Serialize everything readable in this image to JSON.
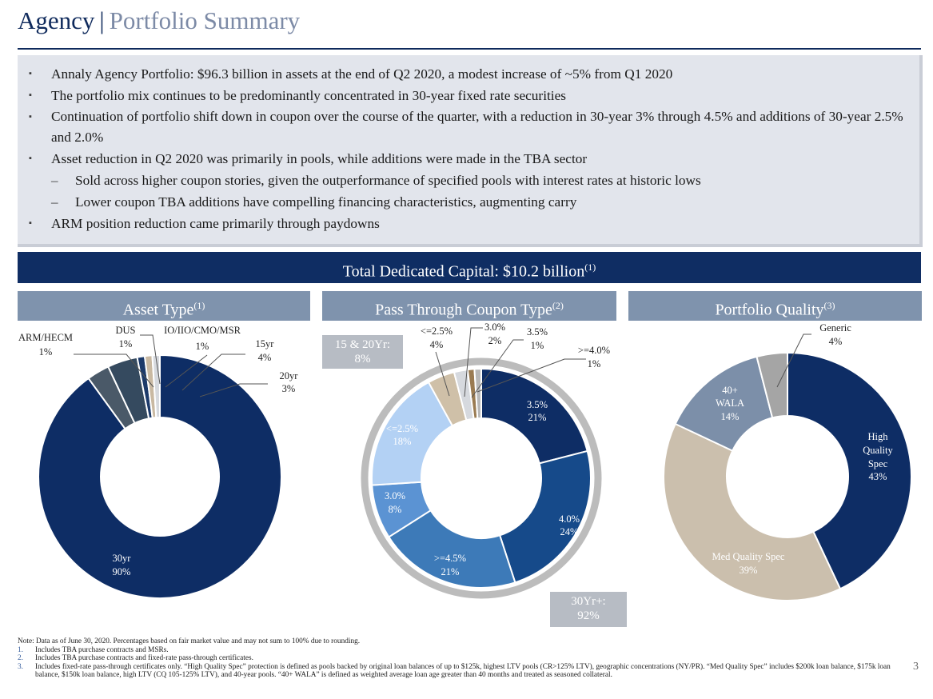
{
  "title": {
    "main": "Agency",
    "separator": "|",
    "sub": "Portfolio Summary"
  },
  "bullets": [
    {
      "level": 1,
      "text": "Annaly Agency Portfolio: $96.3 billion in assets at the end of Q2 2020, a modest increase of ~5% from Q1 2020"
    },
    {
      "level": 1,
      "text": "The portfolio mix continues to be predominantly concentrated in 30-year fixed rate securities"
    },
    {
      "level": 1,
      "text": "Continuation of portfolio shift down in coupon over the course of the quarter, with a reduction in 30-year 3% through 4.5% and additions of 30-year 2.5% and 2.0%"
    },
    {
      "level": 1,
      "text": "Asset reduction in Q2 2020 was primarily in pools, while additions were made in the TBA sector"
    },
    {
      "level": 2,
      "text": "Sold across higher coupon stories, given the outperformance of specified pools with interest rates at historic lows"
    },
    {
      "level": 2,
      "text": "Lower coupon TBA additions have compelling financing characteristics, augmenting carry"
    },
    {
      "level": 1,
      "text": "ARM position reduction came primarily through paydowns"
    }
  ],
  "bullet_markers": {
    "level1": "▪",
    "level2": "–"
  },
  "capital_banner": {
    "text": "Total Dedicated Capital: $10.2 billion",
    "sup": "(1)"
  },
  "headers": {
    "asset_type": {
      "text": "Asset Type",
      "sup": "(1)"
    },
    "coupon_type": {
      "text": "Pass Through Coupon Type",
      "sup": "(2)"
    },
    "quality": {
      "text": "Portfolio Quality",
      "sup": "(3)"
    }
  },
  "boxes": {
    "fifteen_twenty": {
      "line1": "15 & 20Yr:",
      "line2": "8%"
    },
    "thirty": {
      "line1": "30Yr+:",
      "line2": "92%"
    }
  },
  "chart_data": [
    {
      "type": "pie",
      "title": "Asset Type",
      "donut": true,
      "slices": [
        {
          "label": "30yr",
          "value": 90,
          "display": "90%",
          "color": "#0e2d65"
        },
        {
          "label": "ARM/HECM",
          "value": 1,
          "display": "1%",
          "color": "#d6d9de"
        },
        {
          "label": "DUS",
          "value": 1,
          "display": "1%",
          "color": "#c9b9a2"
        },
        {
          "label": "IO/IIO/CMO/MSR",
          "value": 1,
          "display": "1%",
          "color": "#1c3a6a"
        },
        {
          "label": "15yr",
          "value": 4,
          "display": "4%",
          "color": "#354a5f"
        },
        {
          "label": "20yr",
          "value": 3,
          "display": "3%",
          "color": "#4a5968"
        }
      ]
    },
    {
      "type": "pie",
      "title": "Pass Through Coupon Type",
      "donut": true,
      "slices": [
        {
          "label": "3.5%",
          "value": 21,
          "display": "21%",
          "color": "#0e2d65",
          "group": "30Yr+"
        },
        {
          "label": "4.0%",
          "value": 24,
          "display": "24%",
          "color": "#164a8a",
          "group": "30Yr+"
        },
        {
          "label": ">=4.5%",
          "value": 21,
          "display": "21%",
          "color": "#3d7ab8",
          "group": "30Yr+"
        },
        {
          "label": "3.0%",
          "value": 8,
          "display": "8%",
          "color": "#5b93d3",
          "group": "30Yr+"
        },
        {
          "label": "<=2.5%",
          "value": 18,
          "display": "18%",
          "color": "#b3d1f4",
          "group": "30Yr+"
        },
        {
          "label": "<=2.5%",
          "value": 4,
          "display": "4%",
          "color": "#cfc0a8",
          "group": "15 & 20Yr"
        },
        {
          "label": "3.0%",
          "value": 2,
          "display": "2%",
          "color": "#d6d9de",
          "group": "15 & 20Yr"
        },
        {
          "label": "3.5%",
          "value": 1,
          "display": "1%",
          "color": "#9a7b52",
          "group": "15 & 20Yr"
        },
        {
          "label": ">=4.0%",
          "value": 1,
          "display": "1%",
          "color": "#b8b8b8",
          "group": "15 & 20Yr"
        }
      ],
      "groups": [
        {
          "label": "30Yr+",
          "value": 92,
          "display": "92%"
        },
        {
          "label": "15 & 20Yr",
          "value": 8,
          "display": "8%"
        }
      ]
    },
    {
      "type": "pie",
      "title": "Portfolio Quality",
      "donut": true,
      "slices": [
        {
          "label": "High Quality Spec",
          "value": 43,
          "display": "43%",
          "color": "#0e2d65"
        },
        {
          "label": "Med Quality Spec",
          "value": 39,
          "display": "39%",
          "color": "#cbbfad"
        },
        {
          "label": "40+ WALA",
          "value": 14,
          "display": "14%",
          "color": "#7c8fa9"
        },
        {
          "label": "Generic",
          "value": 4,
          "display": "4%",
          "color": "#a5a5a5"
        }
      ]
    }
  ],
  "notes": [
    {
      "num": "",
      "text": "Note: Data as of June 30, 2020. Percentages based on fair market value and may not sum to 100% due to rounding."
    },
    {
      "num": "1.",
      "text": "Includes TBA purchase contracts and MSRs."
    },
    {
      "num": "2.",
      "text": "Includes TBA purchase contracts and fixed-rate pass-through certificates."
    },
    {
      "num": "3.",
      "text": "Includes fixed-rate pass-through certificates only. “High Quality Spec” protection is defined as pools backed by original loan balances of up to $125k, highest LTV pools (CR>125% LTV), geographic concentrations (NY/PR). “Med Quality Spec” includes $200k loan balance, $175k loan balance, $150k loan balance, high LTV (CQ 105-125% LTV), and 40-year pools. “40+ WALA” is defined as weighted average loan age greater than 40 months and treated as seasoned collateral."
    }
  ],
  "page_number": "3"
}
